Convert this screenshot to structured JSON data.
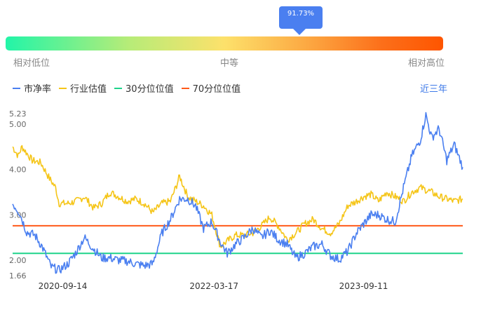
{
  "gauge": {
    "percentile_label": "91.73%",
    "percentile": 91.73,
    "low_label": "相对低位",
    "mid_label": "中等",
    "high_label": "相对高位"
  },
  "period_label": "近三年",
  "chart_data": {
    "type": "line",
    "x_range": [
      "2020-03-16",
      "2024-09-05"
    ],
    "x_ticks": [
      "2020-09-14",
      "2022-03-17",
      "2023-09-11"
    ],
    "y_ticks": [
      "5.23",
      "5.00",
      "4.00",
      "3.00",
      "2.00",
      "1.66"
    ],
    "ylim": [
      1.66,
      5.23
    ],
    "legend_position": "top-left",
    "series": [
      {
        "name": "市净率",
        "color": "#4a7ff0",
        "points": [
          [
            "2020-03-16",
            3.25
          ],
          [
            "2020-04-10",
            3.05
          ],
          [
            "2020-05-06",
            2.62
          ],
          [
            "2020-06-05",
            2.55
          ],
          [
            "2020-07-01",
            2.3
          ],
          [
            "2020-08-03",
            1.85
          ],
          [
            "2020-09-01",
            1.78
          ],
          [
            "2020-10-03",
            1.92
          ],
          [
            "2020-11-02",
            2.18
          ],
          [
            "2020-12-01",
            2.5
          ],
          [
            "2021-01-04",
            2.25
          ],
          [
            "2021-02-02",
            2.05
          ],
          [
            "2021-03-04",
            2.05
          ],
          [
            "2021-04-05",
            2.0
          ],
          [
            "2021-05-05",
            1.98
          ],
          [
            "2021-06-06",
            1.92
          ],
          [
            "2021-07-07",
            1.88
          ],
          [
            "2021-08-07",
            1.92
          ],
          [
            "2021-09-09",
            2.6
          ],
          [
            "2021-10-10",
            2.9
          ],
          [
            "2021-11-12",
            3.35
          ],
          [
            "2021-12-12",
            3.35
          ],
          [
            "2022-01-09",
            3.2
          ],
          [
            "2022-02-07",
            2.7
          ],
          [
            "2022-03-09",
            2.85
          ],
          [
            "2022-04-09",
            2.4
          ],
          [
            "2022-05-04",
            2.15
          ],
          [
            "2022-06-03",
            2.35
          ],
          [
            "2022-07-04",
            2.5
          ],
          [
            "2022-08-05",
            2.7
          ],
          [
            "2022-09-04",
            2.5
          ],
          [
            "2022-10-06",
            2.65
          ],
          [
            "2022-11-06",
            2.45
          ],
          [
            "2022-12-08",
            2.35
          ],
          [
            "2023-01-08",
            2.05
          ],
          [
            "2023-02-09",
            2.15
          ],
          [
            "2023-03-12",
            2.3
          ],
          [
            "2023-04-13",
            2.35
          ],
          [
            "2023-05-14",
            2.1
          ],
          [
            "2023-06-14",
            2.02
          ],
          [
            "2023-07-16",
            2.2
          ],
          [
            "2023-08-16",
            2.6
          ],
          [
            "2023-09-11",
            2.8
          ],
          [
            "2023-10-08",
            3.0
          ],
          [
            "2023-11-04",
            3.0
          ],
          [
            "2023-12-04",
            2.9
          ],
          [
            "2024-01-04",
            2.85
          ],
          [
            "2024-02-03",
            3.6
          ],
          [
            "2024-03-04",
            4.3
          ],
          [
            "2024-04-04",
            4.65
          ],
          [
            "2024-04-24",
            5.2
          ],
          [
            "2024-05-15",
            4.7
          ],
          [
            "2024-06-11",
            4.9
          ],
          [
            "2024-07-09",
            4.2
          ],
          [
            "2024-08-05",
            4.55
          ],
          [
            "2024-09-05",
            4.05
          ]
        ]
      },
      {
        "name": "行业估值",
        "color": "#f5c518",
        "points": [
          [
            "2020-03-16",
            4.5
          ],
          [
            "2020-04-05",
            4.3
          ],
          [
            "2020-04-19",
            4.5
          ],
          [
            "2020-05-26",
            4.2
          ],
          [
            "2020-06-26",
            4.15
          ],
          [
            "2020-07-28",
            3.8
          ],
          [
            "2020-08-19",
            3.6
          ],
          [
            "2020-09-01",
            3.25
          ],
          [
            "2020-10-03",
            3.25
          ],
          [
            "2020-11-02",
            3.3
          ],
          [
            "2020-12-01",
            3.4
          ],
          [
            "2021-01-04",
            3.15
          ],
          [
            "2021-02-02",
            3.25
          ],
          [
            "2021-03-04",
            3.5
          ],
          [
            "2021-04-05",
            3.4
          ],
          [
            "2021-05-05",
            3.3
          ],
          [
            "2021-06-06",
            3.35
          ],
          [
            "2021-07-07",
            3.25
          ],
          [
            "2021-08-07",
            3.05
          ],
          [
            "2021-09-09",
            3.25
          ],
          [
            "2021-10-10",
            3.3
          ],
          [
            "2021-11-01",
            3.65
          ],
          [
            "2021-11-12",
            3.85
          ],
          [
            "2021-12-12",
            3.4
          ],
          [
            "2022-01-09",
            3.3
          ],
          [
            "2022-02-07",
            3.2
          ],
          [
            "2022-03-09",
            3.0
          ],
          [
            "2022-04-09",
            2.3
          ],
          [
            "2022-05-04",
            2.42
          ],
          [
            "2022-06-03",
            2.55
          ],
          [
            "2022-07-04",
            2.55
          ],
          [
            "2022-08-05",
            2.6
          ],
          [
            "2022-09-04",
            2.75
          ],
          [
            "2022-10-06",
            2.95
          ],
          [
            "2022-11-06",
            2.75
          ],
          [
            "2022-12-08",
            2.45
          ],
          [
            "2023-01-08",
            2.6
          ],
          [
            "2023-02-09",
            2.8
          ],
          [
            "2023-03-12",
            2.9
          ],
          [
            "2023-04-13",
            2.7
          ],
          [
            "2023-05-14",
            2.6
          ],
          [
            "2023-06-14",
            2.8
          ],
          [
            "2023-07-16",
            3.2
          ],
          [
            "2023-08-16",
            3.3
          ],
          [
            "2023-09-11",
            3.4
          ],
          [
            "2023-10-08",
            3.45
          ],
          [
            "2023-11-04",
            3.3
          ],
          [
            "2023-12-04",
            3.5
          ],
          [
            "2024-01-04",
            3.4
          ],
          [
            "2024-02-03",
            3.3
          ],
          [
            "2024-03-04",
            3.5
          ],
          [
            "2024-04-04",
            3.6
          ],
          [
            "2024-05-15",
            3.5
          ],
          [
            "2024-06-11",
            3.4
          ],
          [
            "2024-07-09",
            3.35
          ],
          [
            "2024-08-05",
            3.3
          ],
          [
            "2024-09-05",
            3.35
          ]
        ]
      },
      {
        "name": "30分位位值",
        "color": "#1ed38a",
        "value": 2.15
      },
      {
        "name": "70分位位值",
        "color": "#ff5a1a",
        "value": 2.76
      }
    ]
  }
}
